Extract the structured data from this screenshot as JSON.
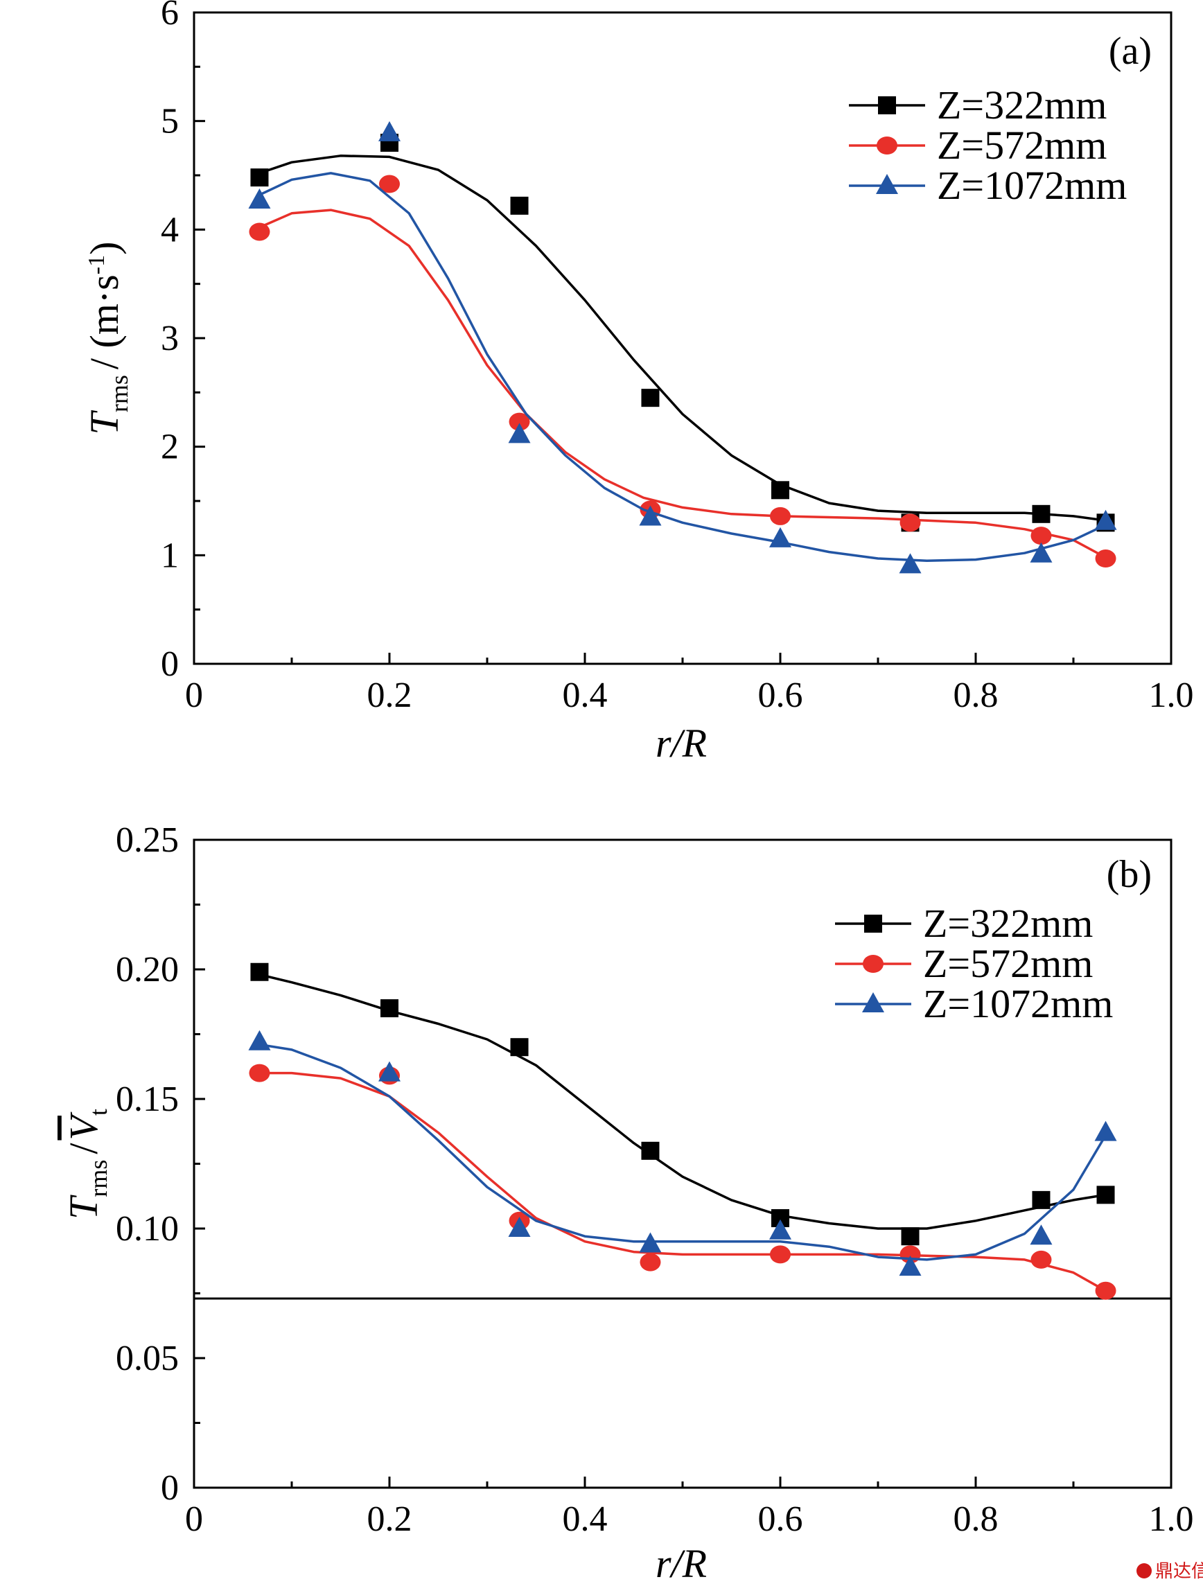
{
  "chart_data": [
    {
      "type": "scatter",
      "panel_label": "(a)",
      "xlabel": "r/R",
      "ylabel": "T_rms / (m·s⁻¹)",
      "ylabel_parts": {
        "symbol": "T",
        "subscript": "rms",
        "rest": "/ (m·s",
        "superscript": "-1",
        "close": ")"
      },
      "xlim": [
        0,
        1.0
      ],
      "ylim": [
        0,
        6
      ],
      "xticks": [
        "0",
        "0.2",
        "0.4",
        "0.6",
        "0.8",
        "1.0"
      ],
      "yticks": [
        "0",
        "1",
        "2",
        "3",
        "4",
        "5",
        "6"
      ],
      "legend_position": "top-right",
      "series": [
        {
          "name": "Z=322mm",
          "color": "#000000",
          "marker": "square",
          "x": [
            0.067,
            0.2,
            0.333,
            0.467,
            0.6,
            0.733,
            0.867,
            0.933
          ],
          "y": [
            4.48,
            4.8,
            4.22,
            2.45,
            1.6,
            1.3,
            1.38,
            1.3
          ],
          "fit": [
            [
              0.067,
              4.52
            ],
            [
              0.1,
              4.62
            ],
            [
              0.15,
              4.68
            ],
            [
              0.2,
              4.67
            ],
            [
              0.25,
              4.55
            ],
            [
              0.3,
              4.27
            ],
            [
              0.35,
              3.85
            ],
            [
              0.4,
              3.35
            ],
            [
              0.45,
              2.8
            ],
            [
              0.5,
              2.3
            ],
            [
              0.55,
              1.92
            ],
            [
              0.6,
              1.65
            ],
            [
              0.65,
              1.48
            ],
            [
              0.7,
              1.41
            ],
            [
              0.75,
              1.39
            ],
            [
              0.8,
              1.39
            ],
            [
              0.85,
              1.39
            ],
            [
              0.9,
              1.36
            ],
            [
              0.933,
              1.32
            ]
          ]
        },
        {
          "name": "Z=572mm",
          "color": "#e8302a",
          "marker": "circle",
          "x": [
            0.067,
            0.2,
            0.333,
            0.467,
            0.6,
            0.733,
            0.867,
            0.933
          ],
          "y": [
            3.98,
            4.42,
            2.23,
            1.42,
            1.36,
            1.3,
            1.18,
            0.97
          ],
          "fit": [
            [
              0.067,
              4.02
            ],
            [
              0.1,
              4.15
            ],
            [
              0.14,
              4.18
            ],
            [
              0.18,
              4.1
            ],
            [
              0.22,
              3.85
            ],
            [
              0.26,
              3.35
            ],
            [
              0.3,
              2.75
            ],
            [
              0.34,
              2.3
            ],
            [
              0.38,
              1.95
            ],
            [
              0.42,
              1.7
            ],
            [
              0.46,
              1.53
            ],
            [
              0.5,
              1.44
            ],
            [
              0.55,
              1.38
            ],
            [
              0.6,
              1.36
            ],
            [
              0.7,
              1.34
            ],
            [
              0.8,
              1.3
            ],
            [
              0.85,
              1.24
            ],
            [
              0.9,
              1.14
            ],
            [
              0.933,
              0.98
            ]
          ]
        },
        {
          "name": "Z=1072mm",
          "color": "#2255a4",
          "marker": "triangle",
          "x": [
            0.067,
            0.2,
            0.333,
            0.467,
            0.6,
            0.733,
            0.867,
            0.933
          ],
          "y": [
            4.27,
            4.89,
            2.11,
            1.35,
            1.15,
            0.91,
            1.01,
            1.31
          ],
          "fit": [
            [
              0.067,
              4.32
            ],
            [
              0.1,
              4.46
            ],
            [
              0.14,
              4.52
            ],
            [
              0.18,
              4.45
            ],
            [
              0.22,
              4.15
            ],
            [
              0.26,
              3.55
            ],
            [
              0.3,
              2.85
            ],
            [
              0.34,
              2.3
            ],
            [
              0.38,
              1.92
            ],
            [
              0.42,
              1.62
            ],
            [
              0.46,
              1.42
            ],
            [
              0.5,
              1.3
            ],
            [
              0.55,
              1.2
            ],
            [
              0.6,
              1.12
            ],
            [
              0.65,
              1.03
            ],
            [
              0.7,
              0.97
            ],
            [
              0.75,
              0.95
            ],
            [
              0.8,
              0.96
            ],
            [
              0.85,
              1.02
            ],
            [
              0.9,
              1.14
            ],
            [
              0.933,
              1.28
            ]
          ]
        }
      ]
    },
    {
      "type": "scatter",
      "panel_label": "(b)",
      "xlabel": "r/R",
      "ylabel": "T_rms / V̄_t",
      "ylabel_parts": {
        "symbol": "T",
        "subscript": "rms",
        "rest": "/",
        "symbol2": "V",
        "subscript2": "t"
      },
      "xlim": [
        0,
        1.0
      ],
      "ylim": [
        0,
        0.25
      ],
      "xticks": [
        "0",
        "0.2",
        "0.4",
        "0.6",
        "0.8",
        "1.0"
      ],
      "yticks": [
        "0",
        "0.05",
        "0.10",
        "0.15",
        "0.20",
        "0.25"
      ],
      "legend_position": "top-right",
      "series": [
        {
          "name": "Z=322mm",
          "color": "#000000",
          "marker": "square",
          "x": [
            0.067,
            0.2,
            0.333,
            0.467,
            0.6,
            0.733,
            0.867,
            0.933
          ],
          "y": [
            0.199,
            0.185,
            0.17,
            0.13,
            0.104,
            0.097,
            0.111,
            0.113
          ],
          "fit": [
            [
              0.067,
              0.198
            ],
            [
              0.1,
              0.195
            ],
            [
              0.15,
              0.19
            ],
            [
              0.2,
              0.184
            ],
            [
              0.25,
              0.179
            ],
            [
              0.3,
              0.173
            ],
            [
              0.35,
              0.163
            ],
            [
              0.4,
              0.148
            ],
            [
              0.45,
              0.133
            ],
            [
              0.5,
              0.12
            ],
            [
              0.55,
              0.111
            ],
            [
              0.6,
              0.105
            ],
            [
              0.65,
              0.102
            ],
            [
              0.7,
              0.1
            ],
            [
              0.75,
              0.1
            ],
            [
              0.8,
              0.103
            ],
            [
              0.85,
              0.107
            ],
            [
              0.9,
              0.111
            ],
            [
              0.933,
              0.113
            ]
          ]
        },
        {
          "name": "Z=572mm",
          "color": "#e8302a",
          "marker": "circle",
          "x": [
            0.067,
            0.2,
            0.333,
            0.467,
            0.6,
            0.733,
            0.867,
            0.933
          ],
          "y": [
            0.16,
            0.159,
            0.103,
            0.087,
            0.09,
            0.09,
            0.088,
            0.076
          ],
          "fit": [
            [
              0.067,
              0.16
            ],
            [
              0.1,
              0.16
            ],
            [
              0.15,
              0.158
            ],
            [
              0.2,
              0.151
            ],
            [
              0.25,
              0.137
            ],
            [
              0.3,
              0.12
            ],
            [
              0.35,
              0.104
            ],
            [
              0.4,
              0.095
            ],
            [
              0.45,
              0.091
            ],
            [
              0.5,
              0.09
            ],
            [
              0.6,
              0.09
            ],
            [
              0.7,
              0.09
            ],
            [
              0.8,
              0.089
            ],
            [
              0.85,
              0.088
            ],
            [
              0.9,
              0.083
            ],
            [
              0.933,
              0.076
            ]
          ]
        },
        {
          "name": "Z=1072mm",
          "color": "#2255a4",
          "marker": "triangle",
          "x": [
            0.067,
            0.2,
            0.333,
            0.467,
            0.6,
            0.733,
            0.867,
            0.933
          ],
          "y": [
            0.172,
            0.16,
            0.1,
            0.094,
            0.099,
            0.085,
            0.097,
            0.137
          ],
          "fit": [
            [
              0.067,
              0.171
            ],
            [
              0.1,
              0.169
            ],
            [
              0.15,
              0.162
            ],
            [
              0.2,
              0.151
            ],
            [
              0.25,
              0.134
            ],
            [
              0.3,
              0.116
            ],
            [
              0.35,
              0.103
            ],
            [
              0.4,
              0.097
            ],
            [
              0.45,
              0.095
            ],
            [
              0.5,
              0.095
            ],
            [
              0.6,
              0.095
            ],
            [
              0.65,
              0.093
            ],
            [
              0.7,
              0.089
            ],
            [
              0.75,
              0.088
            ],
            [
              0.8,
              0.09
            ],
            [
              0.85,
              0.098
            ],
            [
              0.9,
              0.115
            ],
            [
              0.933,
              0.136
            ]
          ]
        }
      ],
      "reference_line_y": 0.073
    }
  ],
  "watermark": "鼎达信"
}
